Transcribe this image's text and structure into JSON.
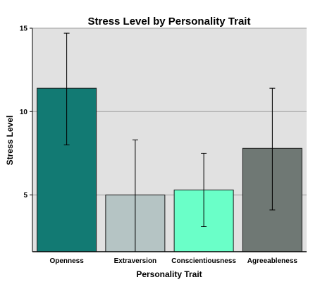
{
  "chart_data": {
    "type": "bar",
    "title": "Stress Level  by Personality Trait",
    "xlabel": "Personality Trait",
    "ylabel": "Stress Level",
    "categories": [
      "Openness",
      "Extraversion",
      "Conscientiousness",
      "Agreeableness"
    ],
    "values": [
      11.4,
      5.0,
      5.3,
      7.8
    ],
    "error_low": [
      8.0,
      1.6,
      3.1,
      4.1
    ],
    "error_high": [
      14.7,
      8.3,
      7.5,
      11.4
    ],
    "colors": [
      "#127a73",
      "#b5c4c4",
      "#6affc8",
      "#6f7874"
    ],
    "ylim": [
      1.6,
      15
    ],
    "yticks": [
      5,
      10,
      15
    ],
    "grid": true,
    "background": "#e1e1e1",
    "error_bars": true
  }
}
